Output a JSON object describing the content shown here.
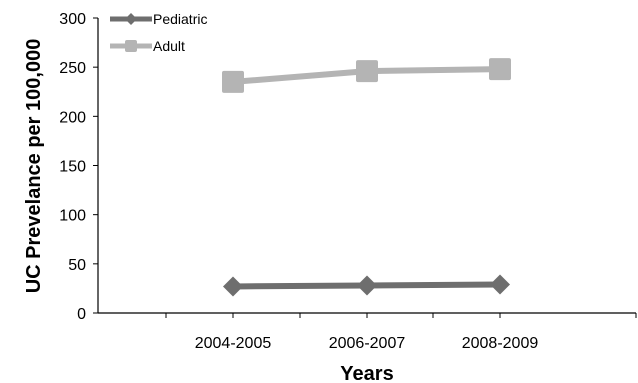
{
  "chart_data": {
    "type": "line",
    "categories": [
      "2004-2005",
      "2006-2007",
      "2008-2009"
    ],
    "series": [
      {
        "name": "Pediatric",
        "values": [
          27,
          28,
          29
        ],
        "color": "#6e6e6e",
        "marker": "diamond"
      },
      {
        "name": "Adult",
        "values": [
          235,
          246,
          248
        ],
        "color": "#b4b4b4",
        "marker": "square"
      }
    ],
    "xlabel": "Years",
    "ylabel": "UC Prevelance per 100,000",
    "ylim": [
      0,
      300
    ],
    "yticks": [
      "0",
      "50",
      "100",
      "150",
      "200",
      "250",
      "300"
    ],
    "grid": false,
    "legend_position": "top-left"
  }
}
